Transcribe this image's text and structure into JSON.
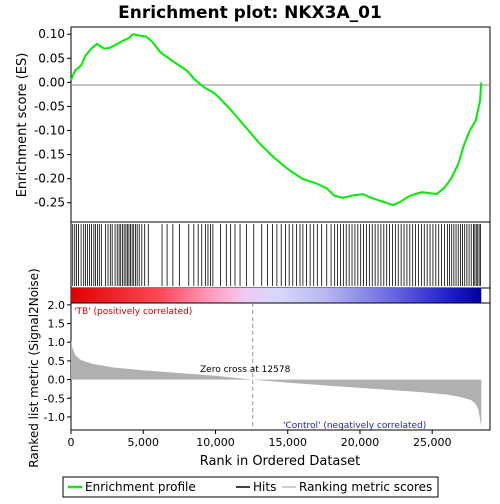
{
  "chart_data": {
    "type": "line",
    "title": "Enrichment plot: NKX3A_01",
    "es_panel": {
      "ylabel": "Enrichment score (ES)",
      "ylim": [
        -0.29,
        0.115
      ],
      "yticks": [
        0.1,
        0.05,
        0.0,
        -0.05,
        -0.1,
        -0.15,
        -0.2,
        -0.25
      ],
      "ytick_labels": [
        "0.10",
        "0.05",
        "0.00",
        "-0.05",
        "-0.10",
        "-0.15",
        "-0.20",
        "-0.25"
      ],
      "series": [
        {
          "name": "Enrichment profile",
          "color": "#00ee00",
          "x": [
            0,
            300,
            700,
            1000,
            1400,
            1800,
            2300,
            2700,
            3100,
            3500,
            4000,
            4300,
            4600,
            5200,
            5600,
            6200,
            7000,
            7500,
            8000,
            8600,
            9200,
            9800,
            10200,
            11000,
            12000,
            13000,
            14000,
            15000,
            16000,
            17000,
            17700,
            18200,
            18800,
            19500,
            20200,
            20800,
            21300,
            21800,
            22300,
            22800,
            23300,
            23800,
            24300,
            24800,
            25300,
            25800,
            26300,
            26800,
            27200,
            27600,
            28000,
            28300,
            28400
          ],
          "y": [
            0.005,
            0.025,
            0.035,
            0.055,
            0.07,
            0.08,
            0.07,
            0.072,
            0.078,
            0.085,
            0.092,
            0.1,
            0.098,
            0.095,
            0.085,
            0.062,
            0.045,
            0.035,
            0.025,
            0.005,
            -0.01,
            -0.02,
            -0.03,
            -0.055,
            -0.09,
            -0.125,
            -0.155,
            -0.18,
            -0.2,
            -0.21,
            -0.22,
            -0.235,
            -0.24,
            -0.235,
            -0.232,
            -0.24,
            -0.245,
            -0.25,
            -0.255,
            -0.248,
            -0.238,
            -0.232,
            -0.228,
            -0.23,
            -0.232,
            -0.22,
            -0.2,
            -0.17,
            -0.13,
            -0.1,
            -0.08,
            -0.04,
            0.0
          ]
        }
      ]
    },
    "hits_panel": {
      "hit_positions": [
        120,
        260,
        380,
        520,
        700,
        880,
        1000,
        1150,
        1290,
        1420,
        1580,
        1700,
        1830,
        1960,
        2100,
        2380,
        2560,
        2720,
        2850,
        3050,
        3200,
        3330,
        3440,
        3560,
        3680,
        3800,
        3900,
        4010,
        4120,
        4230,
        4340,
        4460,
        4580,
        4720,
        4900,
        5100,
        5350,
        6300,
        6650,
        7050,
        7500,
        8150,
        8500,
        8800,
        9050,
        9300,
        9480,
        9650,
        9820,
        10350,
        10750,
        11050,
        11350,
        11700,
        12150,
        12650,
        13200,
        13600,
        13950,
        14250,
        14550,
        14850,
        15100,
        15350,
        15600,
        15850,
        16050,
        16300,
        16550,
        16800,
        17050,
        17350,
        17700,
        18000,
        18250,
        18450,
        18650,
        18850,
        19050,
        19250,
        19450,
        19650,
        19850,
        20050,
        20250,
        20450,
        20650,
        20850,
        21050,
        21250,
        21450,
        21650,
        21850,
        22050,
        22250,
        22450,
        22650,
        22850,
        23050,
        23250,
        23450,
        23650,
        23850,
        24050,
        24250,
        24450,
        24650,
        24850,
        25050,
        25250,
        25450,
        25650,
        25850,
        26050,
        26200,
        26350,
        26500,
        26650,
        26800,
        26950,
        27100,
        27250,
        27400,
        27550,
        27700,
        27850,
        27950,
        28050,
        28150,
        28250,
        28350
      ]
    },
    "metric_panel": {
      "ylabel": "Ranked list metric (Signal2Noise)",
      "ylim": [
        -1.35,
        2.05
      ],
      "yticks": [
        2.0,
        1.5,
        1.0,
        0.5,
        0.0,
        -0.5,
        -1.0
      ],
      "ytick_labels": [
        "2.0",
        "1.5",
        "1.0",
        "0.5",
        "0.0",
        "-0.5",
        "-1.0"
      ],
      "x": [
        0,
        100,
        300,
        700,
        1500,
        3000,
        5000,
        8000,
        10000,
        12578,
        15000,
        18000,
        21000,
        24000,
        26000,
        27000,
        27700,
        28000,
        28200,
        28400
      ],
      "values": [
        1.05,
        0.85,
        0.65,
        0.52,
        0.42,
        0.32,
        0.25,
        0.16,
        0.1,
        0.0,
        -0.08,
        -0.17,
        -0.25,
        -0.33,
        -0.4,
        -0.47,
        -0.55,
        -0.65,
        -0.8,
        -1.25
      ],
      "label_pos": "'TB' (positively correlated)",
      "label_neg": "'Control' (negatively correlated)",
      "zero_cross_label": "Zero cross at 12578",
      "zero_cross": 12578,
      "fill_color": "#b0b0b0"
    },
    "xlabel": "Rank in Ordered Dataset",
    "xlim": [
      0,
      29000
    ],
    "xticks": [
      0,
      5000,
      10000,
      15000,
      20000,
      25000
    ],
    "xtick_labels": [
      "0",
      "5,000",
      "10,000",
      "15,000",
      "20,000",
      "25,000"
    ],
    "legend": {
      "placement": "bottom",
      "items": [
        "Enrichment profile",
        "Hits",
        "Ranking metric scores"
      ]
    }
  }
}
